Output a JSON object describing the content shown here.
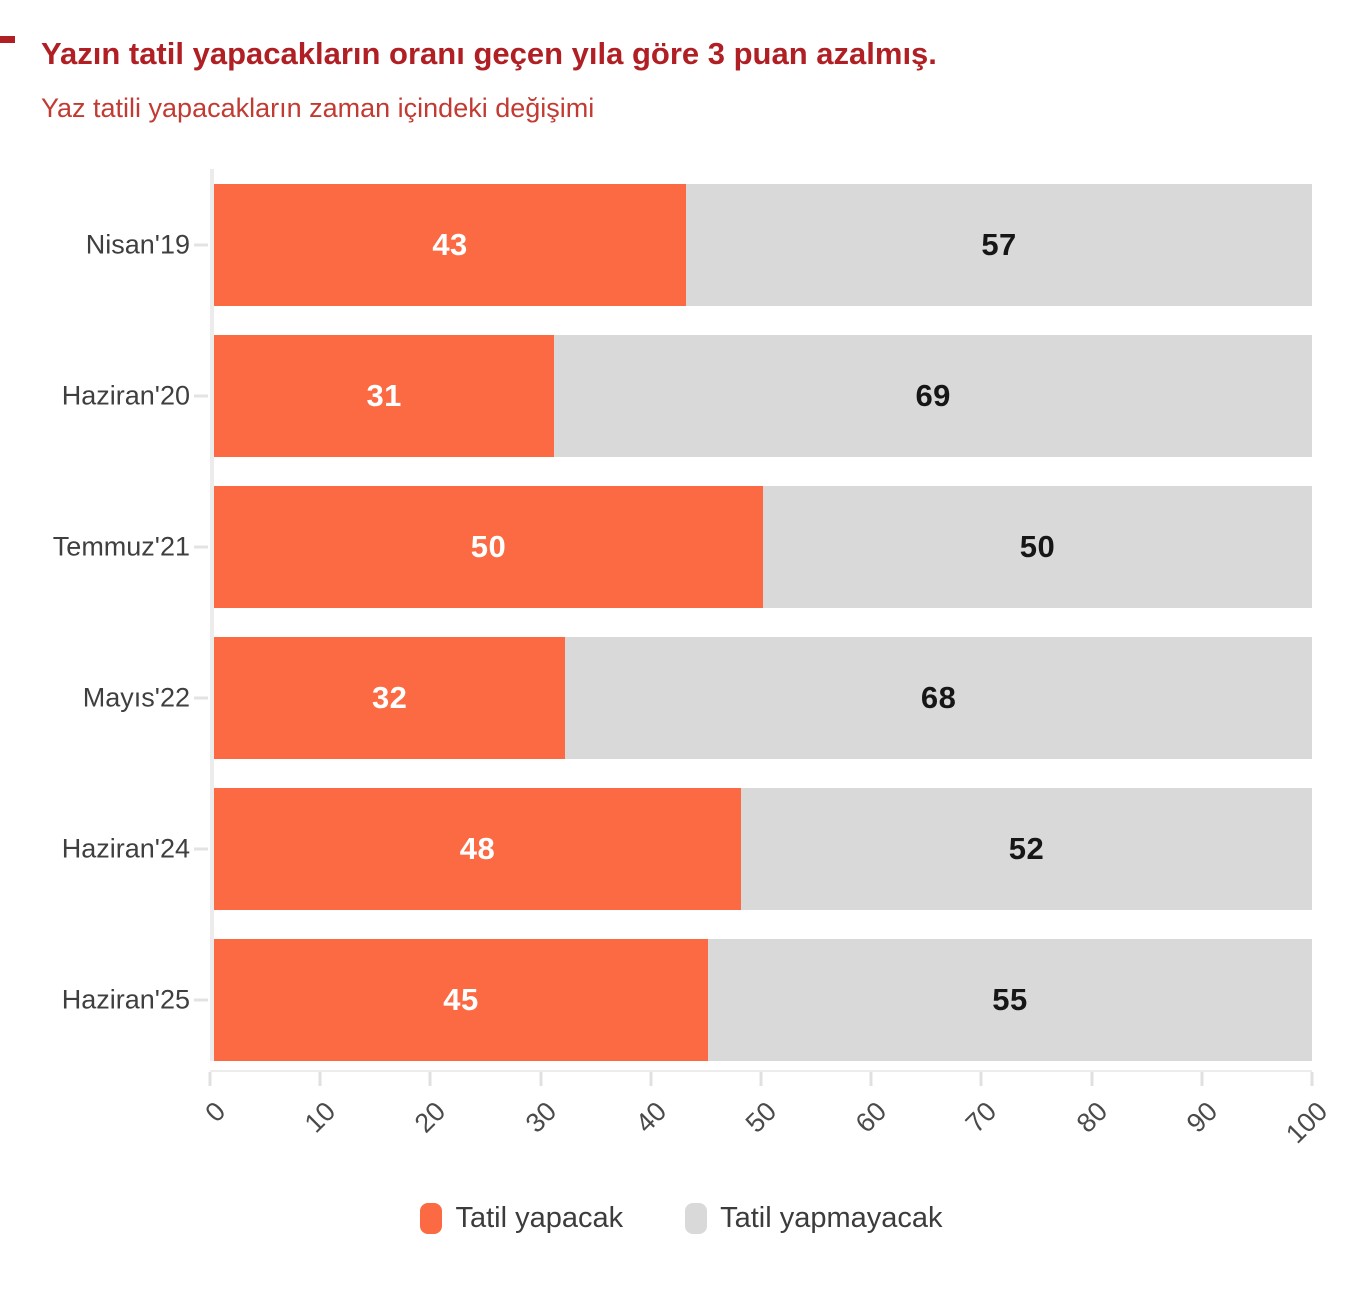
{
  "header": {
    "title": "Yazın tatil yapacakların oranı geçen yıla göre 3 puan azalmış.",
    "subtitle": "Yaz tatili yapacakların zaman içindeki değişimi"
  },
  "chart_data": {
    "type": "bar",
    "orientation": "horizontal",
    "stacked": true,
    "grid": false,
    "legend_position": "bottom",
    "categories": [
      "Nisan'19",
      "Haziran'20",
      "Temmuz'21",
      "Mayıs'22",
      "Haziran'24",
      "Haziran'25"
    ],
    "series": [
      {
        "name": "Tatil yapacak",
        "color": "#FB6A42",
        "values": [
          43,
          31,
          50,
          32,
          48,
          45
        ]
      },
      {
        "name": "Tatil yapmayacak",
        "color": "#D9D9D9",
        "values": [
          57,
          69,
          50,
          68,
          52,
          55
        ]
      }
    ],
    "xlim": [
      0,
      100
    ],
    "x_ticks": [
      0,
      10,
      20,
      30,
      40,
      50,
      60,
      70,
      80,
      90,
      100
    ],
    "xlabel": "",
    "ylabel": ""
  },
  "colors": {
    "title_red": "#B01F24",
    "subtitle_red": "#C23B33",
    "axis_line": "#ECECEC",
    "bar_label_on_orange": "#FFFFFF",
    "bar_label_on_gray": "#161616"
  }
}
